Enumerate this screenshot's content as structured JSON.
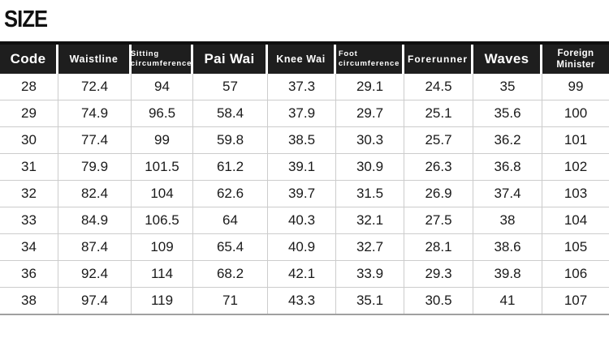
{
  "chart_data": {
    "type": "table",
    "title": "SIZE",
    "columns": [
      "Code",
      "Waistline",
      "Sitting\ncircumference",
      "Pai Wai",
      "Knee Wai",
      "Foot\ncircumference",
      "Forerunner",
      "Waves",
      "Foreign\nMinister"
    ],
    "rows": [
      [
        "28",
        "72.4",
        "94",
        "57",
        "37.3",
        "29.1",
        "24.5",
        "35",
        "99"
      ],
      [
        "29",
        "74.9",
        "96.5",
        "58.4",
        "37.9",
        "29.7",
        "25.1",
        "35.6",
        "100"
      ],
      [
        "30",
        "77.4",
        "99",
        "59.8",
        "38.5",
        "30.3",
        "25.7",
        "36.2",
        "101"
      ],
      [
        "31",
        "79.9",
        "101.5",
        "61.2",
        "39.1",
        "30.9",
        "26.3",
        "36.8",
        "102"
      ],
      [
        "32",
        "82.4",
        "104",
        "62.6",
        "39.7",
        "31.5",
        "26.9",
        "37.4",
        "103"
      ],
      [
        "33",
        "84.9",
        "106.5",
        "64",
        "40.3",
        "32.1",
        "27.5",
        "38",
        "104"
      ],
      [
        "34",
        "87.4",
        "109",
        "65.4",
        "40.9",
        "32.7",
        "28.1",
        "38.6",
        "105"
      ],
      [
        "36",
        "92.4",
        "114",
        "68.2",
        "42.1",
        "33.9",
        "29.3",
        "39.8",
        "106"
      ],
      [
        "38",
        "97.4",
        "119",
        "71",
        "43.3",
        "35.1",
        "30.5",
        "41",
        "107"
      ]
    ],
    "layout_hints": {
      "header_background": "dark",
      "grid": "on",
      "rows_count": 9,
      "columns_count": 9
    }
  },
  "colors": {
    "header_bg": "#1e1e1e",
    "header_text": "#ffffff",
    "grid_line": "#cccccc",
    "bottom_border": "#a0a0a0",
    "text_color": "#1a1a1a",
    "page_bg": "#ffffff",
    "top_bar": "#0f0f0f"
  }
}
